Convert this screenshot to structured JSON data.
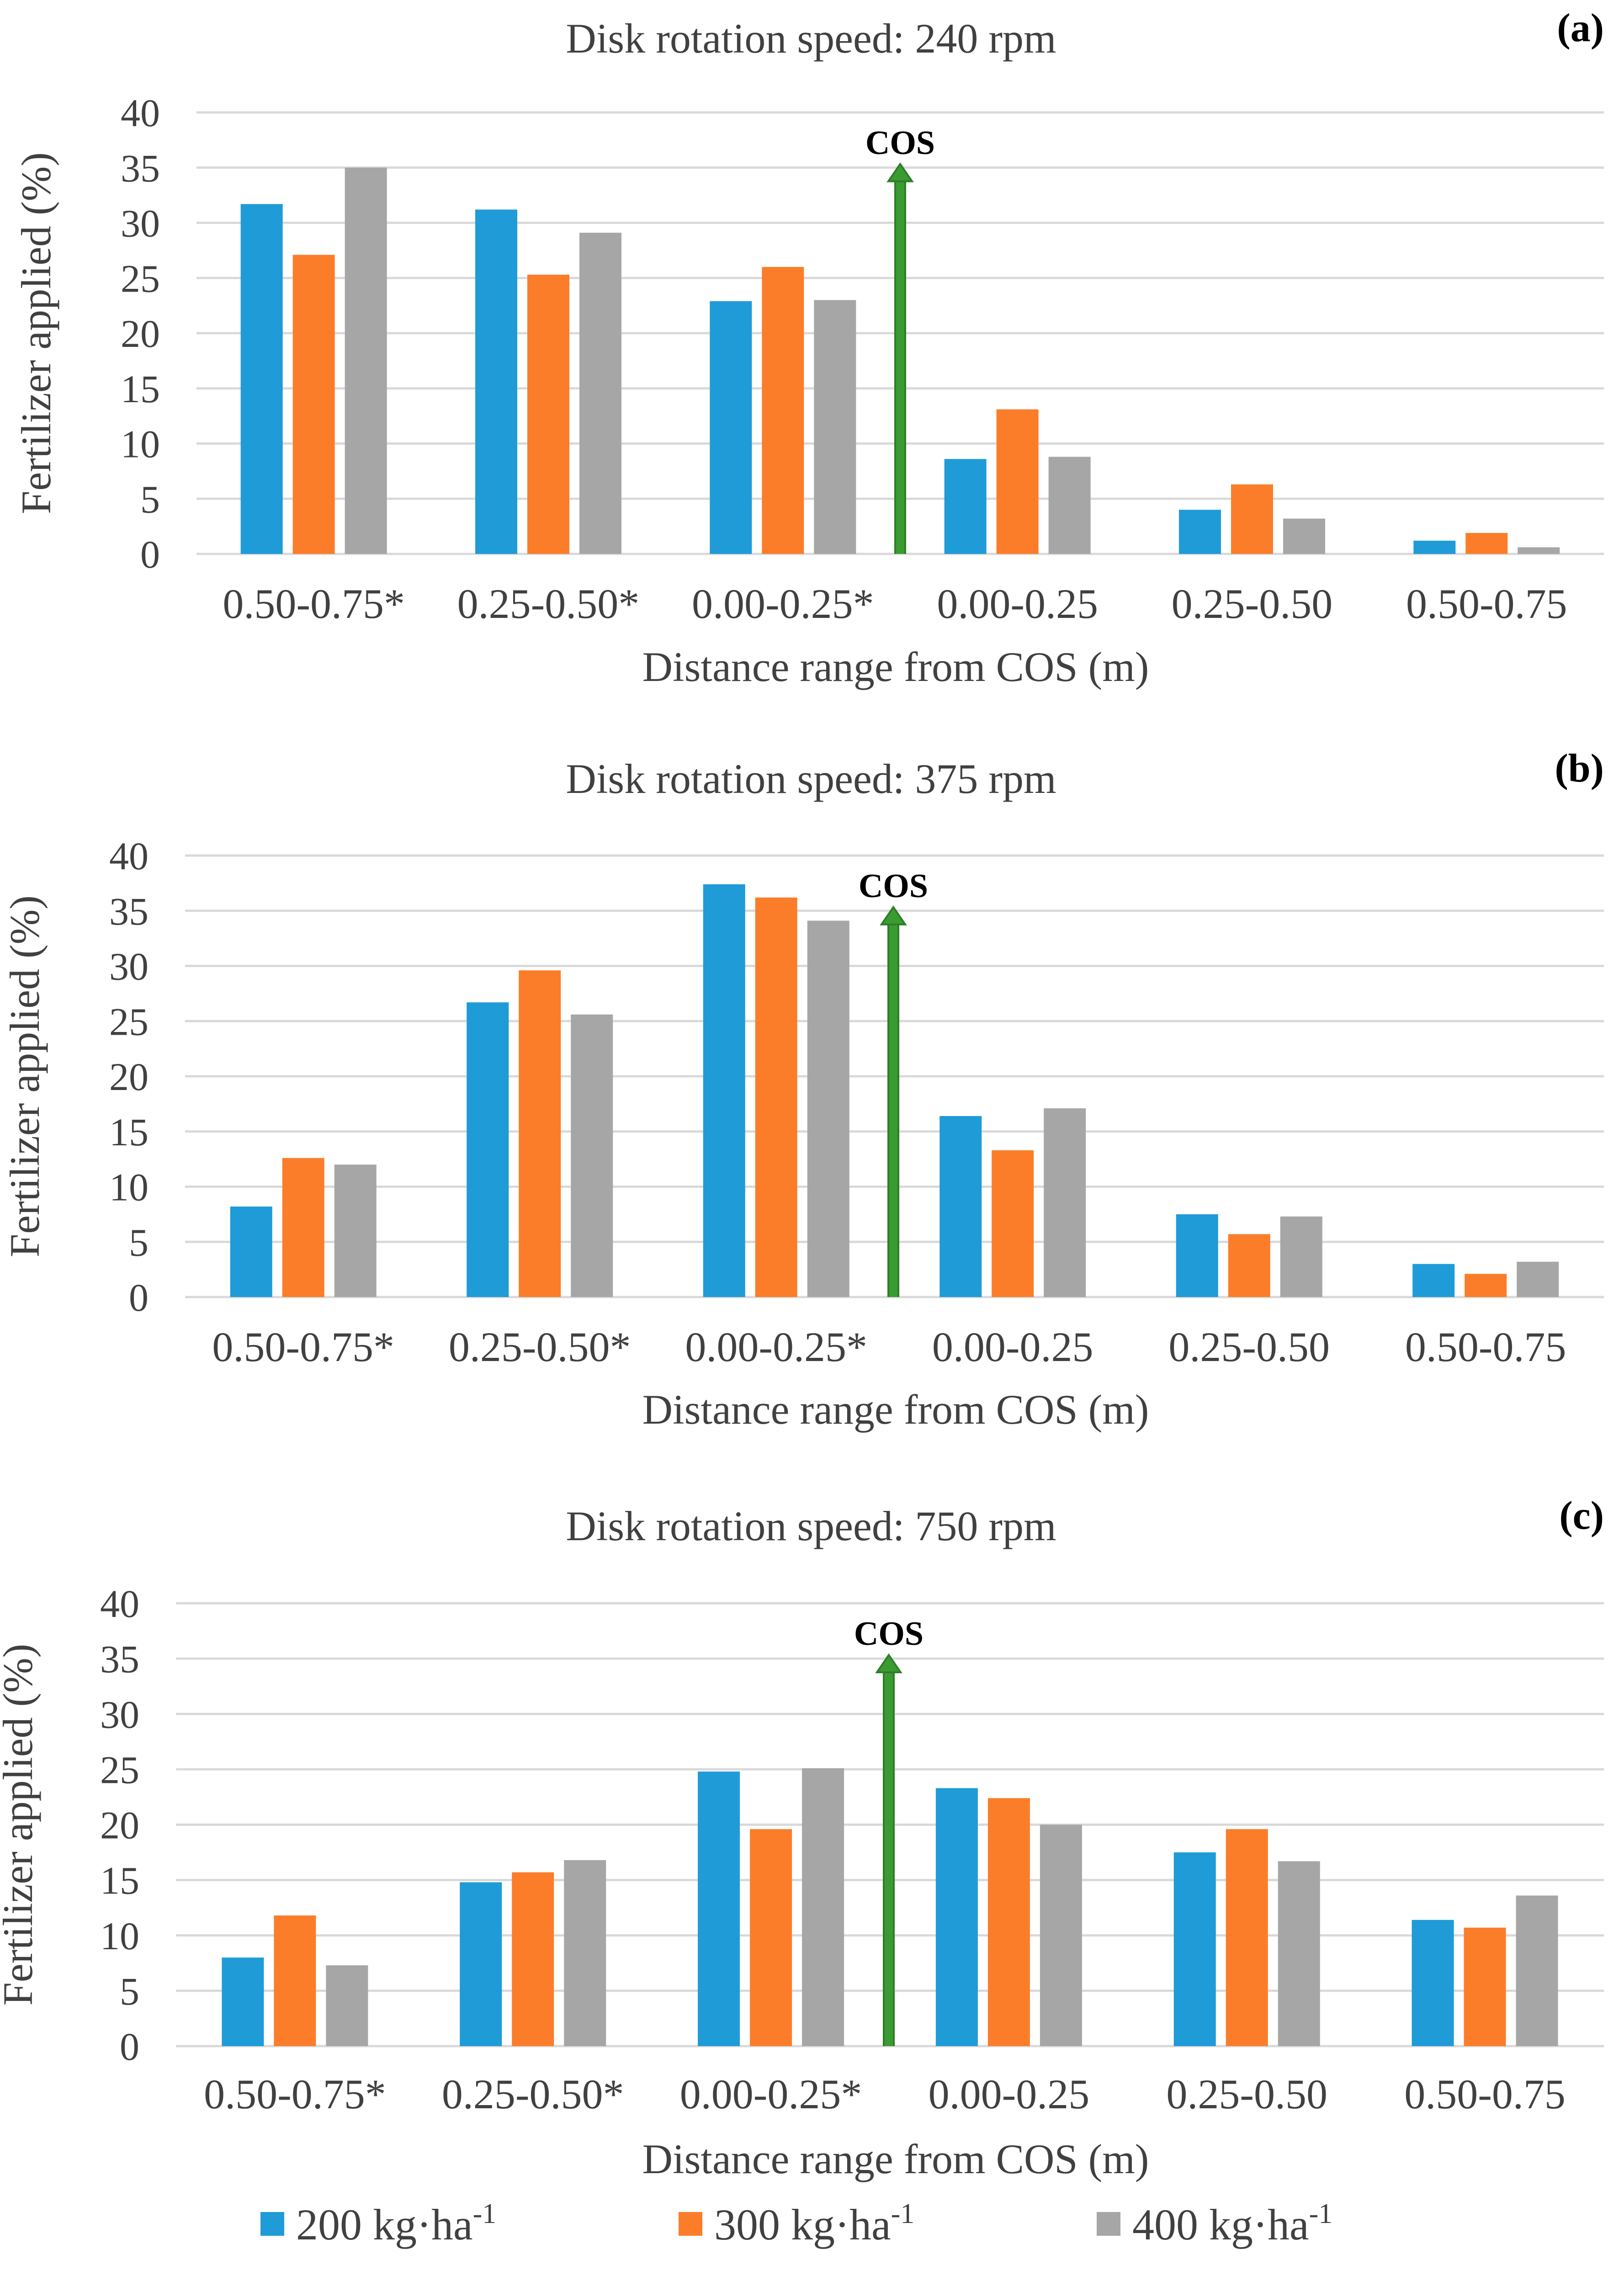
{
  "colors": {
    "series_200": "#1f9bd7",
    "series_300": "#fb7d2a",
    "series_400": "#a6a6a6",
    "cos_arrow": "#3a9b32",
    "gridline": "#d9d9d9"
  },
  "legend": {
    "items": [
      {
        "base": "200 kg·ha",
        "sup": "-1"
      },
      {
        "base": "300 kg·ha",
        "sup": "-1"
      },
      {
        "base": "400 kg·ha",
        "sup": "-1"
      }
    ]
  },
  "chart_data": [
    {
      "type": "bar",
      "panel_label": "(a)",
      "title": "Disk rotation speed: 240 rpm",
      "xlabel": "Distance range from COS (m)",
      "ylabel": "Fertilizer applied (%)",
      "ylim": [
        0,
        40
      ],
      "yticks": [
        0,
        5,
        10,
        15,
        20,
        25,
        30,
        35,
        40
      ],
      "grid": true,
      "categories": [
        "0.50-0.75*",
        "0.25-0.50*",
        "0.00-0.25*",
        "0.00-0.25",
        "0.25-0.50",
        "0.50-0.75"
      ],
      "series": [
        {
          "name": "200 kg·ha-1",
          "values": [
            31.7,
            31.2,
            22.9,
            8.6,
            4.0,
            1.2
          ]
        },
        {
          "name": "300 kg·ha-1",
          "values": [
            27.1,
            25.3,
            26.0,
            13.1,
            6.3,
            1.9
          ]
        },
        {
          "name": "400 kg·ha-1",
          "values": [
            35.0,
            29.1,
            23.0,
            8.8,
            3.2,
            0.6
          ]
        }
      ],
      "annotation": {
        "text": "COS",
        "position": "between 0.00-0.25* and 0.00-0.25",
        "value": 35
      }
    },
    {
      "type": "bar",
      "panel_label": "(b)",
      "title": "Disk rotation speed: 375 rpm",
      "xlabel": "Distance range from COS (m)",
      "ylabel": "Fertilizer applied (%)",
      "ylim": [
        0,
        40
      ],
      "yticks": [
        0,
        5,
        10,
        15,
        20,
        25,
        30,
        35,
        40
      ],
      "grid": true,
      "categories": [
        "0.50-0.75*",
        "0.25-0.50*",
        "0.00-0.25*",
        "0.00-0.25",
        "0.25-0.50",
        "0.50-0.75"
      ],
      "series": [
        {
          "name": "200 kg·ha-1",
          "values": [
            8.2,
            26.7,
            37.4,
            16.4,
            7.5,
            3.0
          ]
        },
        {
          "name": "300 kg·ha-1",
          "values": [
            12.6,
            29.6,
            36.2,
            13.3,
            5.7,
            2.1
          ]
        },
        {
          "name": "400 kg·ha-1",
          "values": [
            12.0,
            25.6,
            34.1,
            17.1,
            7.3,
            3.2
          ]
        }
      ],
      "annotation": {
        "text": "COS",
        "position": "between 0.00-0.25* and 0.00-0.25",
        "value": 35
      }
    },
    {
      "type": "bar",
      "panel_label": "(c)",
      "title": "Disk rotation speed: 750 rpm",
      "xlabel": "Distance range from COS (m)",
      "ylabel": "Fertilizer applied (%)",
      "ylim": [
        0,
        40
      ],
      "yticks": [
        0,
        5,
        10,
        15,
        20,
        25,
        30,
        35,
        40
      ],
      "grid": true,
      "categories": [
        "0.50-0.75*",
        "0.25-0.50*",
        "0.00-0.25*",
        "0.00-0.25",
        "0.25-0.50",
        "0.50-0.75"
      ],
      "series": [
        {
          "name": "200 kg·ha-1",
          "values": [
            8.0,
            14.8,
            24.8,
            23.3,
            17.5,
            11.4
          ]
        },
        {
          "name": "300 kg·ha-1",
          "values": [
            11.8,
            15.7,
            19.6,
            22.4,
            19.6,
            10.7
          ]
        },
        {
          "name": "400 kg·ha-1",
          "values": [
            7.3,
            16.8,
            25.1,
            20.0,
            16.7,
            13.6
          ]
        }
      ],
      "annotation": {
        "text": "COS",
        "position": "between 0.00-0.25* and 0.00-0.25",
        "value": 35
      }
    }
  ]
}
